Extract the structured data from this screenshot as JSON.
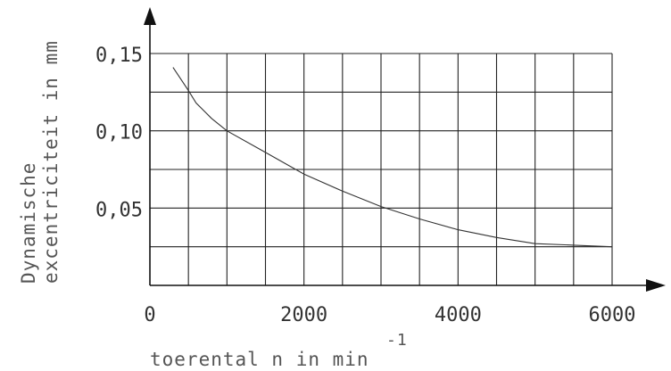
{
  "chart_data": {
    "type": "line",
    "title": "",
    "xlabel": "toerental n in min",
    "xlabel_superscript": "-1",
    "ylabel_line1": "Dynamische",
    "ylabel_line2": "excentriciteit in mm",
    "xlim": [
      0,
      6000
    ],
    "ylim": [
      0,
      0.15
    ],
    "grid": true,
    "x_grid_step": 500,
    "y_grid_step": 0.025,
    "x_tick_labels": [
      "0",
      "2000",
      "4000",
      "6000"
    ],
    "x_tick_values": [
      0,
      2000,
      4000,
      6000
    ],
    "y_tick_labels": [
      "0,05",
      "0,10",
      "0,15"
    ],
    "y_tick_values": [
      0.05,
      0.1,
      0.15
    ],
    "series": [
      {
        "x": [
          300,
          500,
          600,
          800,
          1000,
          1500,
          2000,
          2500,
          3000,
          3500,
          4000,
          4500,
          5000,
          5500,
          6000
        ],
        "values": [
          0.141,
          0.126,
          0.118,
          0.108,
          0.1,
          0.086,
          0.072,
          0.061,
          0.051,
          0.043,
          0.036,
          0.031,
          0.027,
          0.026,
          0.025
        ]
      }
    ]
  }
}
